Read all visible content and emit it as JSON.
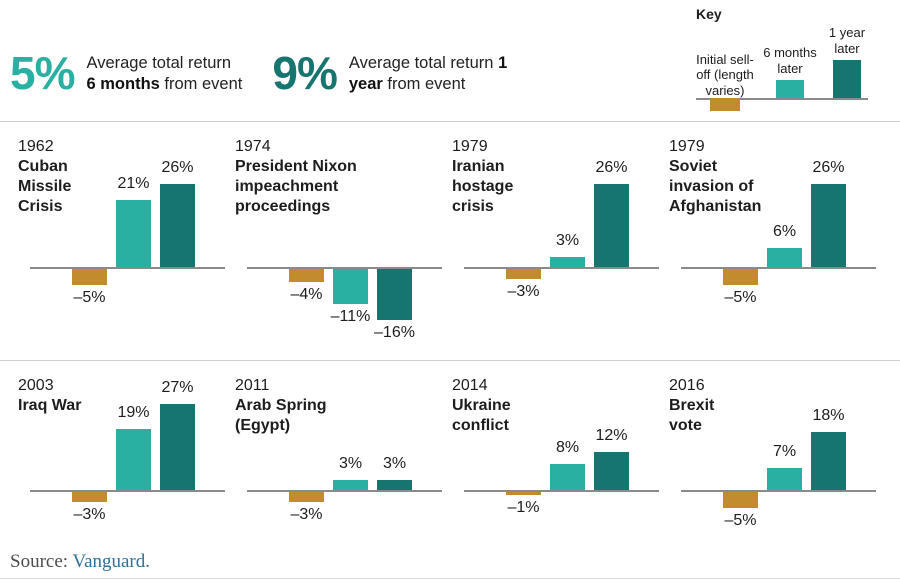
{
  "header": {
    "stats": [
      {
        "value": "5%",
        "line1_regular": "Average total return",
        "line1_bold": "",
        "line2_bold": "6 months",
        "line2_regular": " from event",
        "color": "#29b0a2"
      },
      {
        "value": "9%",
        "line1_regular": "Average total return ",
        "line1_bold": "1",
        "line2_bold": "year",
        "line2_regular": " from event",
        "color": "#17756f"
      }
    ]
  },
  "key": {
    "title": "Key",
    "items": [
      {
        "label": "Initial sell-off (length varies)",
        "color": "#c28b2e"
      },
      {
        "label": "6 months later",
        "color": "#29b0a2"
      },
      {
        "label": "1 year later",
        "color": "#17756f"
      }
    ]
  },
  "colors": {
    "sell_off": "#c28b2e",
    "six_months": "#29b0a2",
    "one_year": "#17756f",
    "axis": "#8a8a8a",
    "link_blue": "#2d7198"
  },
  "chart_data": {
    "type": "bar",
    "title": "",
    "unit": "%",
    "series_names": [
      "Initial sell-off (length varies)",
      "6 months later",
      "1 year later"
    ],
    "series_colors": [
      "#c28b2e",
      "#29b0a2",
      "#17756f"
    ],
    "ylim": [
      -16,
      27
    ],
    "grid": false,
    "events": [
      {
        "year": "1962",
        "name_lines": [
          "Cuban",
          "Missile",
          "Crisis"
        ],
        "values": [
          -5,
          21,
          26
        ],
        "labels": [
          "–5%",
          "21%",
          "26%"
        ]
      },
      {
        "year": "1974",
        "name_lines": [
          "President Nixon",
          "impeachment",
          "proceedings"
        ],
        "values": [
          -4,
          -11,
          -16
        ],
        "labels": [
          "–4%",
          "–11%",
          "–16%"
        ]
      },
      {
        "year": "1979",
        "name_lines": [
          "Iranian",
          "hostage",
          "crisis"
        ],
        "values": [
          -3,
          3,
          26
        ],
        "labels": [
          "–3%",
          "3%",
          "26%"
        ]
      },
      {
        "year": "1979",
        "name_lines": [
          "Soviet",
          "invasion of",
          "Afghanistan"
        ],
        "values": [
          -5,
          6,
          26
        ],
        "labels": [
          "–5%",
          "6%",
          "26%"
        ]
      },
      {
        "year": "2003",
        "name_lines": [
          "Iraq War"
        ],
        "values": [
          -3,
          19,
          27
        ],
        "labels": [
          "–3%",
          "19%",
          "27%"
        ]
      },
      {
        "year": "2011",
        "name_lines": [
          "Arab Spring",
          "(Egypt)"
        ],
        "values": [
          -3,
          3,
          3
        ],
        "labels": [
          "–3%",
          "3%",
          "3%"
        ]
      },
      {
        "year": "2014",
        "name_lines": [
          "Ukraine",
          "conflict"
        ],
        "values": [
          -1,
          8,
          12
        ],
        "labels": [
          "–1%",
          "8%",
          "12%"
        ]
      },
      {
        "year": "2016",
        "name_lines": [
          "Brexit",
          "vote"
        ],
        "values": [
          -5,
          7,
          18
        ],
        "labels": [
          "–5%",
          "7%",
          "18%"
        ]
      }
    ]
  },
  "source": {
    "prefix": "Source: ",
    "link_text": "Vanguard."
  }
}
